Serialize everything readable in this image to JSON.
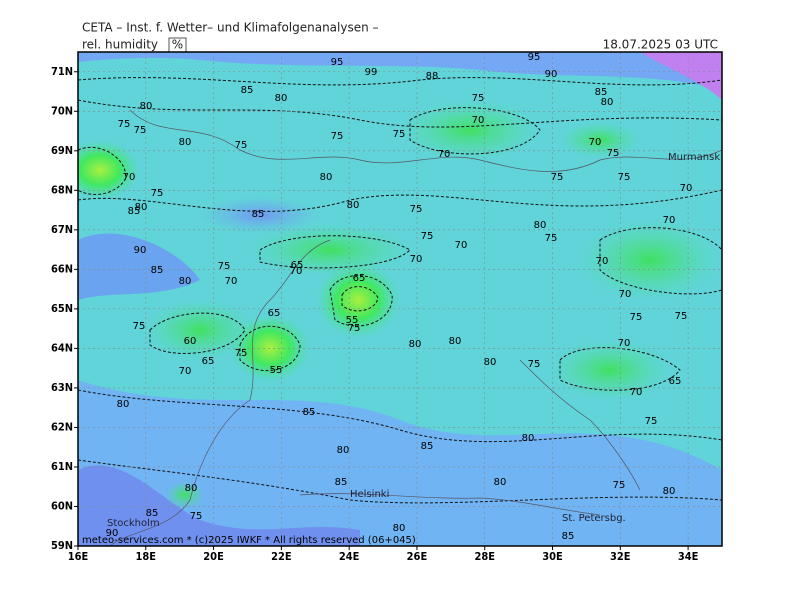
{
  "header": {
    "title": "CETA – Inst. f. Wetter– und Klimafolgenanalysen –",
    "field": "rel. humidity",
    "unit": "%",
    "valid": "18.07.2025 03 UTC"
  },
  "footer": "meteo-services.com * (c)2025 IWKF * All rights reserved (06+045)",
  "map": {
    "lonlim": [
      16,
      35
    ],
    "latlim": [
      59,
      71.5
    ],
    "lon_ticks": [
      {
        "value": 16,
        "label": "16E"
      },
      {
        "value": 18,
        "label": "18E"
      },
      {
        "value": 20,
        "label": "20E"
      },
      {
        "value": 22,
        "label": "22E"
      },
      {
        "value": 24,
        "label": "24E"
      },
      {
        "value": 26,
        "label": "26E"
      },
      {
        "value": 28,
        "label": "28E"
      },
      {
        "value": 30,
        "label": "30E"
      },
      {
        "value": 32,
        "label": "32E"
      },
      {
        "value": 34,
        "label": "34E"
      }
    ],
    "lat_ticks": [
      {
        "value": 59,
        "label": "59N"
      },
      {
        "value": 60,
        "label": "60N"
      },
      {
        "value": 61,
        "label": "61N"
      },
      {
        "value": 62,
        "label": "62N"
      },
      {
        "value": 63,
        "label": "63N"
      },
      {
        "value": 64,
        "label": "64N"
      },
      {
        "value": 65,
        "label": "65N"
      },
      {
        "value": 66,
        "label": "66N"
      },
      {
        "value": 67,
        "label": "67N"
      },
      {
        "value": 68,
        "label": "68N"
      },
      {
        "value": 69,
        "label": "69N"
      },
      {
        "value": 70,
        "label": "70N"
      },
      {
        "value": 71,
        "label": "71N"
      }
    ],
    "cities": [
      "Murmansk",
      "Stockholm",
      "Helsinki",
      "St. Petersbg."
    ],
    "contour_labels": [
      95,
      99,
      95,
      90,
      88,
      85,
      80,
      85,
      80,
      75,
      80,
      75,
      75,
      80,
      70,
      75,
      75,
      70,
      70,
      75,
      75,
      70,
      80,
      75,
      75,
      70,
      75,
      80,
      85,
      80,
      85,
      75,
      80,
      75,
      70,
      75,
      70,
      90,
      85,
      75,
      65,
      70,
      70,
      70,
      80,
      70,
      65,
      70,
      55,
      65,
      75,
      75,
      75,
      60,
      55,
      75,
      80,
      80,
      70,
      65,
      75,
      70,
      80,
      75,
      70,
      65,
      80,
      85,
      80,
      85,
      80,
      75,
      80,
      85,
      80,
      75,
      80,
      85,
      75,
      80,
      90,
      85
    ]
  }
}
